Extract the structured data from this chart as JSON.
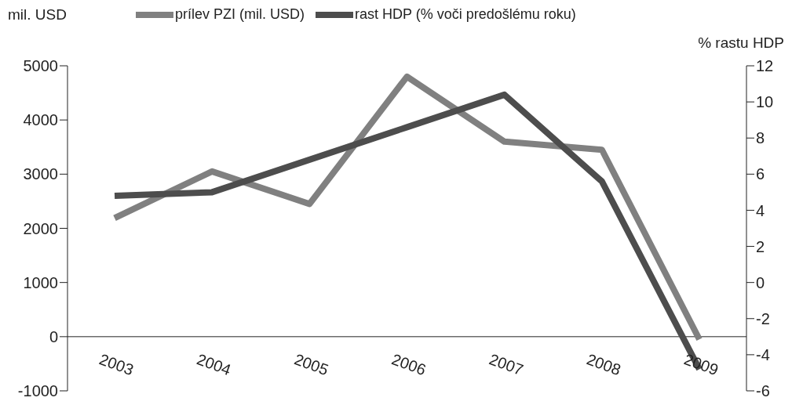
{
  "chart_data": {
    "type": "line",
    "ylabel": "mil. USD",
    "y2label": "% rastu HDP",
    "categories": [
      "2003",
      "2004",
      "2005",
      "2006",
      "2007",
      "2008",
      "2009"
    ],
    "series": [
      {
        "name": "prílev PZI (mil. USD)",
        "color": "#808080",
        "values": [
          2190,
          3050,
          2450,
          4800,
          3600,
          3450,
          -50
        ]
      },
      {
        "name": "rast HDP (% voči predošlému roku)",
        "color": "#4d4d4d",
        "axis": "y2",
        "values": [
          4.8,
          5.0,
          6.8,
          8.6,
          10.4,
          5.6,
          -4.8
        ]
      }
    ],
    "ylim": [
      -1000,
      5000
    ],
    "yticks": [
      -1000,
      0,
      1000,
      2000,
      3000,
      4000,
      5000
    ],
    "y2lim": [
      -6,
      12
    ],
    "y2ticks": [
      -6,
      -4,
      -2,
      0,
      2,
      4,
      6,
      8,
      10,
      12
    ],
    "grid": false,
    "legend": "top",
    "marker": "none",
    "line_style": "solid"
  }
}
